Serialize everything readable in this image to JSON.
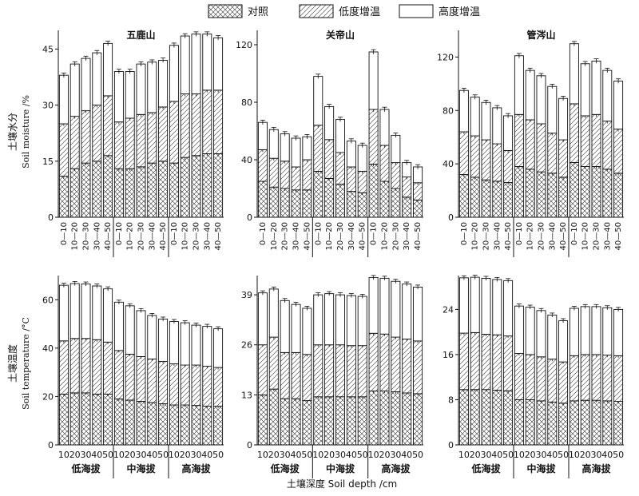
{
  "chart_data": {
    "type": "stacked bar",
    "legend": [
      "对照",
      "低度增温",
      "高度增温"
    ],
    "legend_placement": "top-center",
    "group_labels": [
      "低海拔",
      "中海拔",
      "高海拔"
    ],
    "x_tick_labels_moisture": [
      "0—10",
      "10—20",
      "20—30",
      "30—40",
      "40—50"
    ],
    "x_tick_labels_temperature": [
      "10",
      "20",
      "30",
      "40",
      "50"
    ],
    "xlabel": "土壤深度 Soil depth /cm",
    "row_labels": {
      "moisture": {
        "cn": "土壤水分",
        "en": "Soil moisture /%"
      },
      "temperature": {
        "cn": "土壤温度",
        "en": "Soil temperature /°C"
      }
    },
    "panels": [
      {
        "id": "m1",
        "row": "moisture",
        "title": "五鹿山",
        "ylim": [
          0,
          50
        ],
        "yticks": [
          0,
          15,
          30,
          45
        ],
        "values": [
          {
            "control": 11.0,
            "low": 25.0,
            "high": 38.0
          },
          {
            "control": 13.0,
            "low": 27.0,
            "high": 41.0
          },
          {
            "control": 14.5,
            "low": 28.5,
            "high": 42.5
          },
          {
            "control": 15.0,
            "low": 30.0,
            "high": 44.0
          },
          {
            "control": 16.5,
            "low": 32.5,
            "high": 46.5
          },
          {
            "control": 13.0,
            "low": 25.5,
            "high": 39.0
          },
          {
            "control": 13.0,
            "low": 26.5,
            "high": 39.0
          },
          {
            "control": 13.5,
            "low": 27.5,
            "high": 41.0
          },
          {
            "control": 14.5,
            "low": 28.0,
            "high": 41.5
          },
          {
            "control": 15.0,
            "low": 29.5,
            "high": 42.0
          },
          {
            "control": 14.5,
            "low": 31.0,
            "high": 46.0
          },
          {
            "control": 16.0,
            "low": 33.0,
            "high": 48.5
          },
          {
            "control": 16.5,
            "low": 33.0,
            "high": 49.0
          },
          {
            "control": 17.0,
            "low": 34.0,
            "high": 49.0
          },
          {
            "control": 17.0,
            "low": 34.0,
            "high": 48.0
          }
        ]
      },
      {
        "id": "m2",
        "row": "moisture",
        "title": "关帝山",
        "ylim": [
          0,
          130
        ],
        "yticks": [
          0,
          40,
          80,
          120
        ],
        "values": [
          {
            "control": 25.0,
            "low": 47.0,
            "high": 66.0
          },
          {
            "control": 21.0,
            "low": 41.0,
            "high": 61.0
          },
          {
            "control": 20.0,
            "low": 39.0,
            "high": 58.0
          },
          {
            "control": 19.0,
            "low": 35.0,
            "high": 55.0
          },
          {
            "control": 19.0,
            "low": 40.0,
            "high": 56.0
          },
          {
            "control": 32.0,
            "low": 64.0,
            "high": 98.0
          },
          {
            "control": 27.0,
            "low": 54.0,
            "high": 77.0
          },
          {
            "control": 23.0,
            "low": 45.0,
            "high": 68.0
          },
          {
            "control": 18.0,
            "low": 35.0,
            "high": 53.0
          },
          {
            "control": 17.0,
            "low": 32.0,
            "high": 50.0
          },
          {
            "control": 37.0,
            "low": 75.0,
            "high": 115.0
          },
          {
            "control": 25.0,
            "low": 50.0,
            "high": 75.0
          },
          {
            "control": 20.0,
            "low": 38.0,
            "high": 57.0
          },
          {
            "control": 14.0,
            "low": 28.0,
            "high": 38.0
          },
          {
            "control": 12.0,
            "low": 24.0,
            "high": 35.0
          }
        ]
      },
      {
        "id": "m3",
        "row": "moisture",
        "title": "管涔山",
        "ylim": [
          0,
          140
        ],
        "yticks": [
          0,
          40,
          80,
          120
        ],
        "values": [
          {
            "control": 32.0,
            "low": 64.0,
            "high": 95.0
          },
          {
            "control": 30.0,
            "low": 61.0,
            "high": 90.0
          },
          {
            "control": 28.0,
            "low": 58.0,
            "high": 86.0
          },
          {
            "control": 27.0,
            "low": 55.0,
            "high": 82.0
          },
          {
            "control": 26.0,
            "low": 50.0,
            "high": 76.0
          },
          {
            "control": 38.0,
            "low": 77.0,
            "high": 121.0
          },
          {
            "control": 36.0,
            "low": 73.0,
            "high": 110.0
          },
          {
            "control": 34.0,
            "low": 70.0,
            "high": 106.0
          },
          {
            "control": 33.0,
            "low": 63.0,
            "high": 98.0
          },
          {
            "control": 30.0,
            "low": 58.0,
            "high": 89.0
          },
          {
            "control": 41.0,
            "low": 85.0,
            "high": 130.0
          },
          {
            "control": 38.0,
            "low": 76.0,
            "high": 115.0
          },
          {
            "control": 38.0,
            "low": 77.0,
            "high": 117.0
          },
          {
            "control": 36.0,
            "low": 72.0,
            "high": 110.0
          },
          {
            "control": 33.0,
            "low": 66.0,
            "high": 102.0
          }
        ]
      },
      {
        "id": "t1",
        "row": "temperature",
        "title": "",
        "ylim": [
          0,
          70
        ],
        "yticks": [
          0,
          20,
          40,
          60
        ],
        "values": [
          {
            "control": 21.0,
            "low": 43.0,
            "high": 66.0
          },
          {
            "control": 21.5,
            "low": 44.0,
            "high": 66.7
          },
          {
            "control": 21.5,
            "low": 44.0,
            "high": 66.5
          },
          {
            "control": 21.0,
            "low": 43.5,
            "high": 65.7
          },
          {
            "control": 21.0,
            "low": 42.5,
            "high": 64.5
          },
          {
            "control": 19.0,
            "low": 39.0,
            "high": 59.0
          },
          {
            "control": 18.5,
            "low": 37.5,
            "high": 57.5
          },
          {
            "control": 18.0,
            "low": 36.5,
            "high": 55.5
          },
          {
            "control": 17.5,
            "low": 35.5,
            "high": 53.5
          },
          {
            "control": 17.0,
            "low": 34.5,
            "high": 52.0
          },
          {
            "control": 16.5,
            "low": 33.5,
            "high": 51.0
          },
          {
            "control": 16.5,
            "low": 33.0,
            "high": 50.5
          },
          {
            "control": 16.3,
            "low": 33.0,
            "high": 49.5
          },
          {
            "control": 16.0,
            "low": 32.5,
            "high": 49.0
          },
          {
            "control": 16.0,
            "low": 32.0,
            "high": 48.0
          }
        ]
      },
      {
        "id": "t2",
        "row": "temperature",
        "title": "",
        "ylim": [
          0,
          44
        ],
        "yticks": [
          0,
          13,
          26,
          39
        ],
        "values": [
          {
            "control": 13.0,
            "low": 26.0,
            "high": 39.5
          },
          {
            "control": 14.5,
            "low": 28.0,
            "high": 40.5
          },
          {
            "control": 12.0,
            "low": 24.0,
            "high": 37.5
          },
          {
            "control": 12.0,
            "low": 24.0,
            "high": 36.5
          },
          {
            "control": 11.5,
            "low": 23.5,
            "high": 35.5
          },
          {
            "control": 12.5,
            "low": 26.0,
            "high": 39.0
          },
          {
            "control": 12.5,
            "low": 26.0,
            "high": 39.3
          },
          {
            "control": 12.5,
            "low": 26.0,
            "high": 39.0
          },
          {
            "control": 12.5,
            "low": 25.8,
            "high": 38.8
          },
          {
            "control": 12.5,
            "low": 25.8,
            "high": 38.6
          },
          {
            "control": 14.0,
            "low": 29.0,
            "high": 43.5
          },
          {
            "control": 14.0,
            "low": 28.8,
            "high": 43.3
          },
          {
            "control": 13.8,
            "low": 28.0,
            "high": 42.5
          },
          {
            "control": 13.5,
            "low": 27.5,
            "high": 41.8
          },
          {
            "control": 13.3,
            "low": 27.0,
            "high": 41.0
          }
        ]
      },
      {
        "id": "t3",
        "row": "temperature",
        "title": "",
        "ylim": [
          0,
          30
        ],
        "yticks": [
          0,
          8,
          16,
          24
        ],
        "values": [
          {
            "control": 9.8,
            "low": 19.8,
            "high": 29.6
          },
          {
            "control": 9.8,
            "low": 19.9,
            "high": 29.7
          },
          {
            "control": 9.8,
            "low": 19.6,
            "high": 29.5
          },
          {
            "control": 9.7,
            "low": 19.5,
            "high": 29.3
          },
          {
            "control": 9.6,
            "low": 19.3,
            "high": 29.1
          },
          {
            "control": 8.0,
            "low": 16.2,
            "high": 24.6
          },
          {
            "control": 8.0,
            "low": 16.0,
            "high": 24.4
          },
          {
            "control": 7.8,
            "low": 15.6,
            "high": 23.8
          },
          {
            "control": 7.6,
            "low": 15.2,
            "high": 23.0
          },
          {
            "control": 7.4,
            "low": 14.7,
            "high": 22.0
          },
          {
            "control": 7.8,
            "low": 15.8,
            "high": 24.2
          },
          {
            "control": 7.9,
            "low": 16.0,
            "high": 24.5
          },
          {
            "control": 7.9,
            "low": 16.0,
            "high": 24.5
          },
          {
            "control": 7.8,
            "low": 15.9,
            "high": 24.3
          },
          {
            "control": 7.7,
            "low": 15.8,
            "high": 24.0
          }
        ]
      }
    ]
  }
}
